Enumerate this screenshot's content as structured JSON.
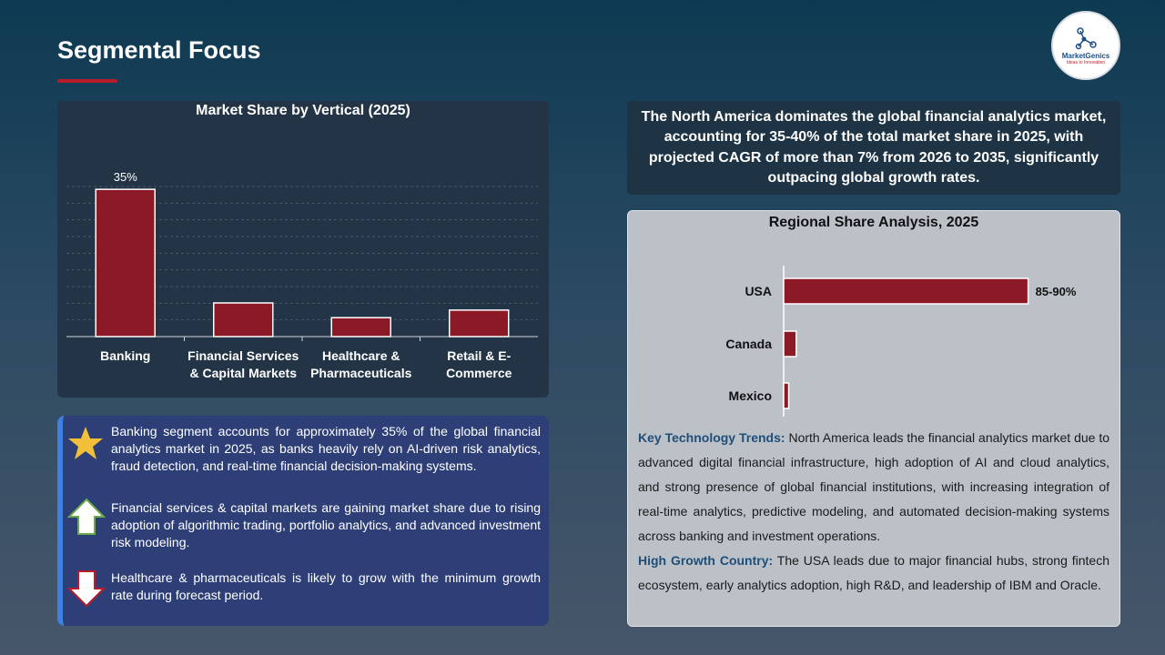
{
  "page": {
    "title": "Segmental Focus",
    "logo": {
      "name": "MarketGenics",
      "tagline": "Ideas to Innovation"
    }
  },
  "colors": {
    "bar": "#8b1a26",
    "accent_red": "#b81c2a",
    "accent_blue": "#3f7fe0"
  },
  "chart_data": [
    {
      "type": "bar",
      "title": "Market Share by Vertical (2025)",
      "categories": [
        "Banking",
        "Financial Services & Capital Markets",
        "Healthcare & Pharmaceuticals",
        "Retail & E-Commerce"
      ],
      "category_lines": [
        [
          "Banking"
        ],
        [
          "Financial Services",
          "& Capital Markets"
        ],
        [
          "Healthcare &",
          "Pharmaceuticals"
        ],
        [
          "Retail & E-",
          "Commerce"
        ]
      ],
      "values": [
        35,
        8,
        4.5,
        6.3
      ],
      "data_labels": [
        "35%",
        "",
        "",
        ""
      ],
      "ylim": [
        0,
        40
      ],
      "grid": true,
      "xlabel": "",
      "ylabel": ""
    },
    {
      "type": "bar",
      "orientation": "horizontal",
      "title": "Regional Share Analysis, 2025",
      "categories": [
        "USA",
        "Canada",
        "Mexico"
      ],
      "values": [
        87.5,
        4.5,
        1.8
      ],
      "data_labels": [
        "85-90%",
        "",
        ""
      ],
      "xlim": [
        0,
        100
      ],
      "grid": false,
      "xlabel": "",
      "ylabel": ""
    }
  ],
  "bullets": [
    {
      "icon": "star-icon",
      "text": "Banking segment accounts for approximately 35% of the global financial analytics market in 2025, as banks heavily rely on AI-driven risk analytics, fraud detection, and real-time financial decision-making systems."
    },
    {
      "icon": "arrow-up-icon",
      "text": "Financial services & capital markets are gaining market share due to rising adoption of algorithmic trading, portfolio analytics, and advanced investment risk modeling."
    },
    {
      "icon": "arrow-down-icon",
      "text": "Healthcare & pharmaceuticals is likely to grow with the minimum growth rate during forecast period."
    }
  ],
  "summary": "The North America dominates the global financial analytics market, accounting for 35-40% of the total market share in 2025, with projected CAGR of more than 7% from 2026 to 2035, significantly outpacing global growth rates.",
  "region": {
    "trends_label": "Key Technology Trends:",
    "trends_text": " North America leads the financial analytics market due to advanced digital financial infrastructure, high adoption of AI and cloud analytics, and strong presence of global financial institutions, with increasing integration of real-time analytics, predictive modeling, and automated decision-making systems across banking and investment operations.",
    "growth_label": "High Growth Country:",
    "growth_text": " The USA leads due to major financial hubs, strong fintech ecosystem, early analytics adoption, high R&D, and leadership of IBM and Oracle."
  }
}
